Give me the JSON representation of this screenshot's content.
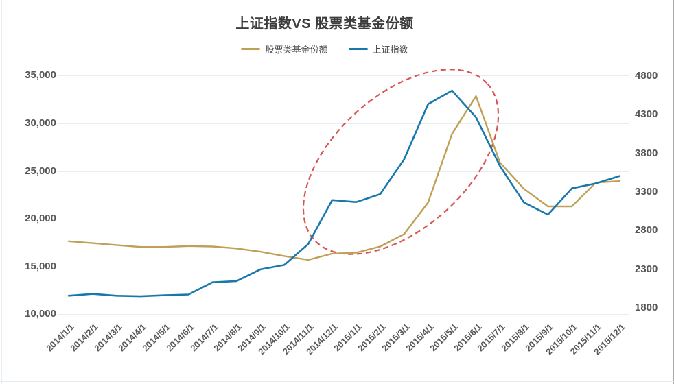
{
  "title": "上证指数VS 股票类基金份额",
  "legend": [
    {
      "label": "股票类基金份额",
      "color": "#bfa056"
    },
    {
      "label": "上证指数",
      "color": "#1878ad"
    }
  ],
  "colors": {
    "fund_series": "#bfa056",
    "index_series": "#1878ad",
    "annotation": "#d95454",
    "grid": "#e7eef3",
    "axis_text": "#565656",
    "title_text": "#3d3d3d"
  },
  "chart_data": {
    "type": "line",
    "title": "上证指数VS 股票类基金份额",
    "grid": true,
    "legend_position": "top",
    "categories": [
      "2014/1/1",
      "2014/2/1",
      "2014/3/1",
      "2014/4/1",
      "2014/5/1",
      "2014/6/1",
      "2014/7/1",
      "2014/8/1",
      "2014/9/1",
      "2014/10/1",
      "2014/11/1",
      "2014/12/1",
      "2015/1/1",
      "2015/2/1",
      "2015/3/1",
      "2015/4/1",
      "2015/5/1",
      "2015/6/1",
      "2015/7/1",
      "2015/8/1",
      "2015/9/1",
      "2015/10/1",
      "2015/11/1",
      "2015/12/1"
    ],
    "series": [
      {
        "name": "股票类基金份额",
        "axis": "left",
        "color": "#bfa056",
        "values": [
          17650,
          17450,
          17250,
          17050,
          17050,
          17150,
          17100,
          16900,
          16550,
          16100,
          15700,
          16350,
          16450,
          17100,
          18400,
          21700,
          28900,
          32850,
          25900,
          23150,
          21300,
          21300,
          23800,
          23950
        ]
      },
      {
        "name": "上证指数",
        "axis": "right",
        "color": "#1878ad",
        "values": [
          2033,
          2056,
          2033,
          2026,
          2039,
          2048,
          2202,
          2217,
          2364,
          2420,
          2683,
          3235,
          3210,
          3310,
          3748,
          4442,
          4612,
          4277,
          3664,
          3206,
          3053,
          3383,
          3445,
          3539
        ]
      }
    ],
    "left_axis": {
      "min": 10000,
      "max": 35000,
      "tick_labels": [
        "35,000",
        "30,000",
        "25,000",
        "20,000",
        "15,000",
        "10,000"
      ],
      "tick_values": [
        35000,
        30000,
        25000,
        20000,
        15000,
        10000
      ]
    },
    "right_axis": {
      "min": 1800,
      "max": 4800,
      "tick_labels": [
        "4800",
        "4300",
        "3800",
        "3300",
        "2800",
        "2300",
        "1800"
      ],
      "tick_values": [
        4800,
        4300,
        3800,
        3300,
        2800,
        2300,
        1800
      ]
    },
    "annotation": {
      "type": "dashed-ellipse",
      "color": "#d95454",
      "note": "highlight of 2014/11-2015/7 run-up"
    }
  }
}
